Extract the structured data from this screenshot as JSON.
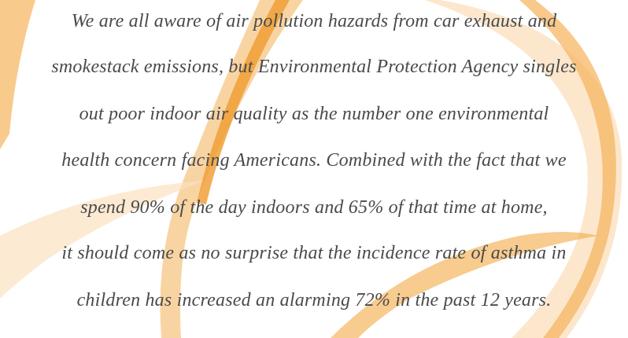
{
  "paragraph": {
    "lines": [
      "We are all aware of air pollution hazards from car exhaust and",
      "smokestack emissions, but Environmental Protection Agency singles",
      "out poor indoor air quality as the number one environmental",
      "health concern facing Americans. Combined with the fact that we",
      "spend 90% of the day indoors and 65% of that time at home,",
      "it should come as no surprise that the incidence rate of asthma in",
      "children has increased an alarming 72% in the past 12 years."
    ]
  }
}
